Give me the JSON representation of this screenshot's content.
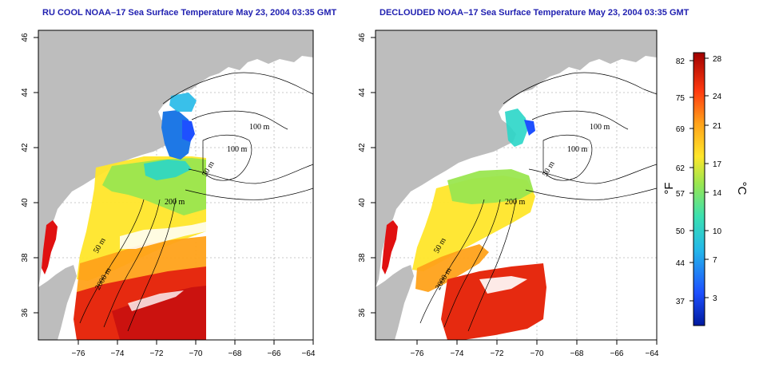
{
  "panels": [
    {
      "id": "left",
      "title": "RU COOL NOAA–17 Sea Surface Temperature May 23, 2004 03:35 GMT",
      "x_ticks": [
        "−76",
        "−74",
        "−72",
        "−70",
        "−68",
        "−66",
        "−64"
      ],
      "y_ticks": [
        "36",
        "38",
        "40",
        "42",
        "44",
        "46"
      ],
      "contour_labels": [
        "100 m",
        "100 m",
        "50 m",
        "200 m",
        "50 m",
        "2000 m"
      ]
    },
    {
      "id": "right",
      "title": "DECLOUDED NOAA–17 Sea Surface Temperature May 23, 2004 03:35 GMT",
      "x_ticks": [
        "−76",
        "−74",
        "−72",
        "−70",
        "−68",
        "−66",
        "−64"
      ],
      "y_ticks": [
        "36",
        "38",
        "40",
        "42",
        "44",
        "46"
      ],
      "contour_labels": [
        "100 m",
        "100 m",
        "50 m",
        "200 m",
        "50 m",
        "2000 m"
      ]
    }
  ],
  "colorbar": {
    "fahrenheit_label": "°F",
    "celsius_label": "°C",
    "fahrenheit_ticks": [
      "82",
      "75",
      "69",
      "62",
      "57",
      "50",
      "44",
      "37"
    ],
    "celsius_ticks": [
      "28",
      "24",
      "21",
      "17",
      "14",
      "10",
      "7",
      "3"
    ],
    "colors": [
      "#a00000",
      "#e01010",
      "#ff6a00",
      "#ffd21a",
      "#9ae650",
      "#2ad6c8",
      "#1e78e6",
      "#001a9e"
    ]
  },
  "map_colors": {
    "land": "#bdbdbd",
    "water_no_data": "#ffffff",
    "grid": "#b8b8b8",
    "contour": "#000000"
  }
}
